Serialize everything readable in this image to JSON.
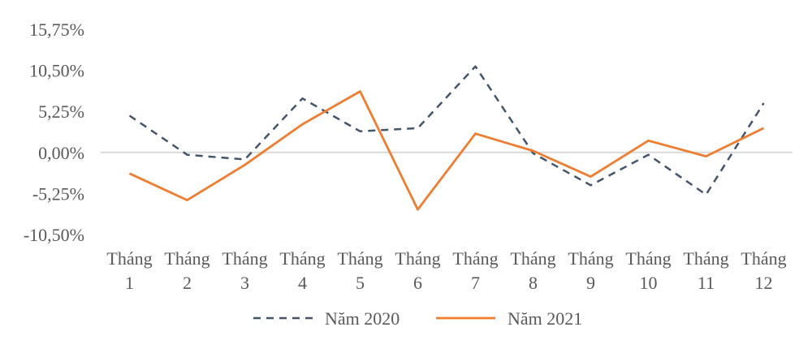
{
  "chart_data": {
    "type": "line",
    "categories": [
      [
        "Tháng",
        "1"
      ],
      [
        "Tháng",
        "2"
      ],
      [
        "Tháng",
        "3"
      ],
      [
        "Tháng",
        "4"
      ],
      [
        "Tháng",
        "5"
      ],
      [
        "Tháng",
        "6"
      ],
      [
        "Tháng",
        "7"
      ],
      [
        "Tháng",
        "8"
      ],
      [
        "Tháng",
        "9"
      ],
      [
        "Tháng",
        "10"
      ],
      [
        "Tháng",
        "11"
      ],
      [
        "Tháng",
        "12"
      ]
    ],
    "yticks": [
      15.75,
      10.5,
      5.25,
      0,
      -5.25,
      -10.5
    ],
    "ytick_labels": [
      "15,75%",
      "10,50%",
      "5,25%",
      "0,00%",
      "-5,25%",
      "-10,50%"
    ],
    "ylim": [
      -10.5,
      15.75
    ],
    "grid": false,
    "legend_position": "bottom",
    "series": [
      {
        "name": "Năm 2020",
        "style": "dashed",
        "color": "#44546A",
        "values": [
          4.7,
          -0.3,
          -0.9,
          6.9,
          2.7,
          3.1,
          11.0,
          -0.1,
          -4.2,
          -0.3,
          -5.4,
          6.3
        ]
      },
      {
        "name": "Năm 2021",
        "style": "solid",
        "color": "#ED7D31",
        "values": [
          -2.7,
          -6.1,
          -1.6,
          3.6,
          7.8,
          -7.3,
          2.4,
          0.2,
          -3.1,
          1.5,
          -0.5,
          3.1
        ]
      }
    ]
  }
}
